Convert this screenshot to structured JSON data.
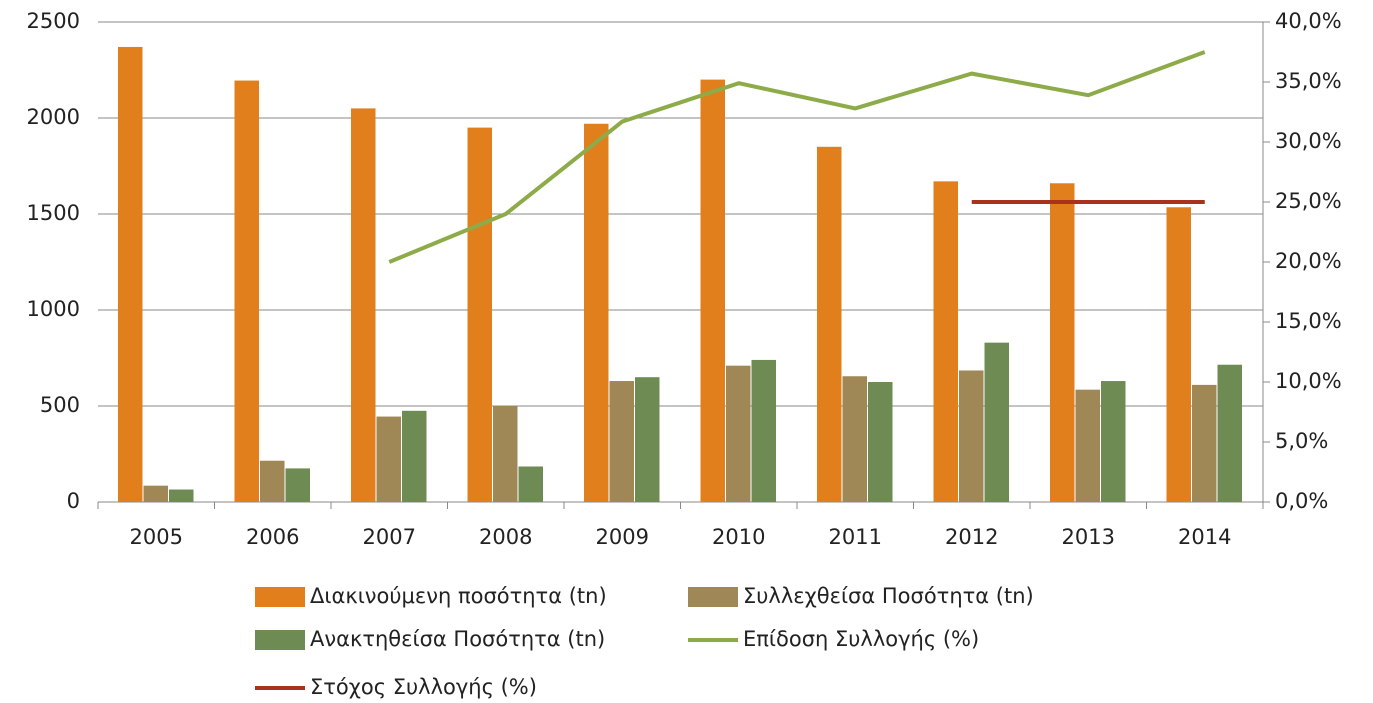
{
  "chart_data": {
    "type": "bar",
    "categories": [
      "2005",
      "2006",
      "2007",
      "2008",
      "2009",
      "2010",
      "2011",
      "2012",
      "2013",
      "2014"
    ],
    "series": [
      {
        "name": "Διακινούμενη ποσότητα (tn)",
        "type": "bar",
        "color": "#e07f1c",
        "values": [
          2370,
          2195,
          2050,
          1950,
          1970,
          2200,
          1850,
          1670,
          1660,
          1535
        ]
      },
      {
        "name": "Συλλεχθείσα Ποσότητα (tn)",
        "type": "bar",
        "color": "#a08756",
        "values": [
          85,
          215,
          445,
          500,
          630,
          710,
          655,
          685,
          585,
          610
        ]
      },
      {
        "name": "Ανακτηθείσα Ποσότητα (tn)",
        "type": "bar",
        "color": "#6f8b54",
        "values": [
          65,
          175,
          475,
          185,
          650,
          740,
          625,
          830,
          630,
          715
        ]
      },
      {
        "name": "Επίδοση Συλλογής (%)",
        "type": "line",
        "axis": "y2",
        "color": "#8eab4a",
        "values": [
          null,
          null,
          20.0,
          24.0,
          31.7,
          34.9,
          32.8,
          35.7,
          33.9,
          37.5
        ]
      },
      {
        "name": "Στόχος Συλλογής (%)",
        "type": "line",
        "axis": "y2",
        "color": "#a8321b",
        "values": [
          null,
          null,
          null,
          null,
          null,
          null,
          null,
          25,
          25,
          25
        ]
      }
    ],
    "ylim": [
      0,
      2500
    ],
    "yticks": [
      0,
      500,
      1000,
      1500,
      2000,
      2500
    ],
    "y2lim": [
      0,
      40
    ],
    "y2ticks": [
      {
        "value": 0,
        "label": "0,0%"
      },
      {
        "value": 5,
        "label": "5,0%"
      },
      {
        "value": 10,
        "label": "10,0%"
      },
      {
        "value": 15,
        "label": "15,0%"
      },
      {
        "value": 20,
        "label": "20,0%"
      },
      {
        "value": 25,
        "label": "25,0%"
      },
      {
        "value": 30,
        "label": "30,0%"
      },
      {
        "value": 35,
        "label": "35,0%"
      },
      {
        "value": 40,
        "label": "40,0%"
      }
    ],
    "grid": true,
    "legend": "bottom"
  }
}
